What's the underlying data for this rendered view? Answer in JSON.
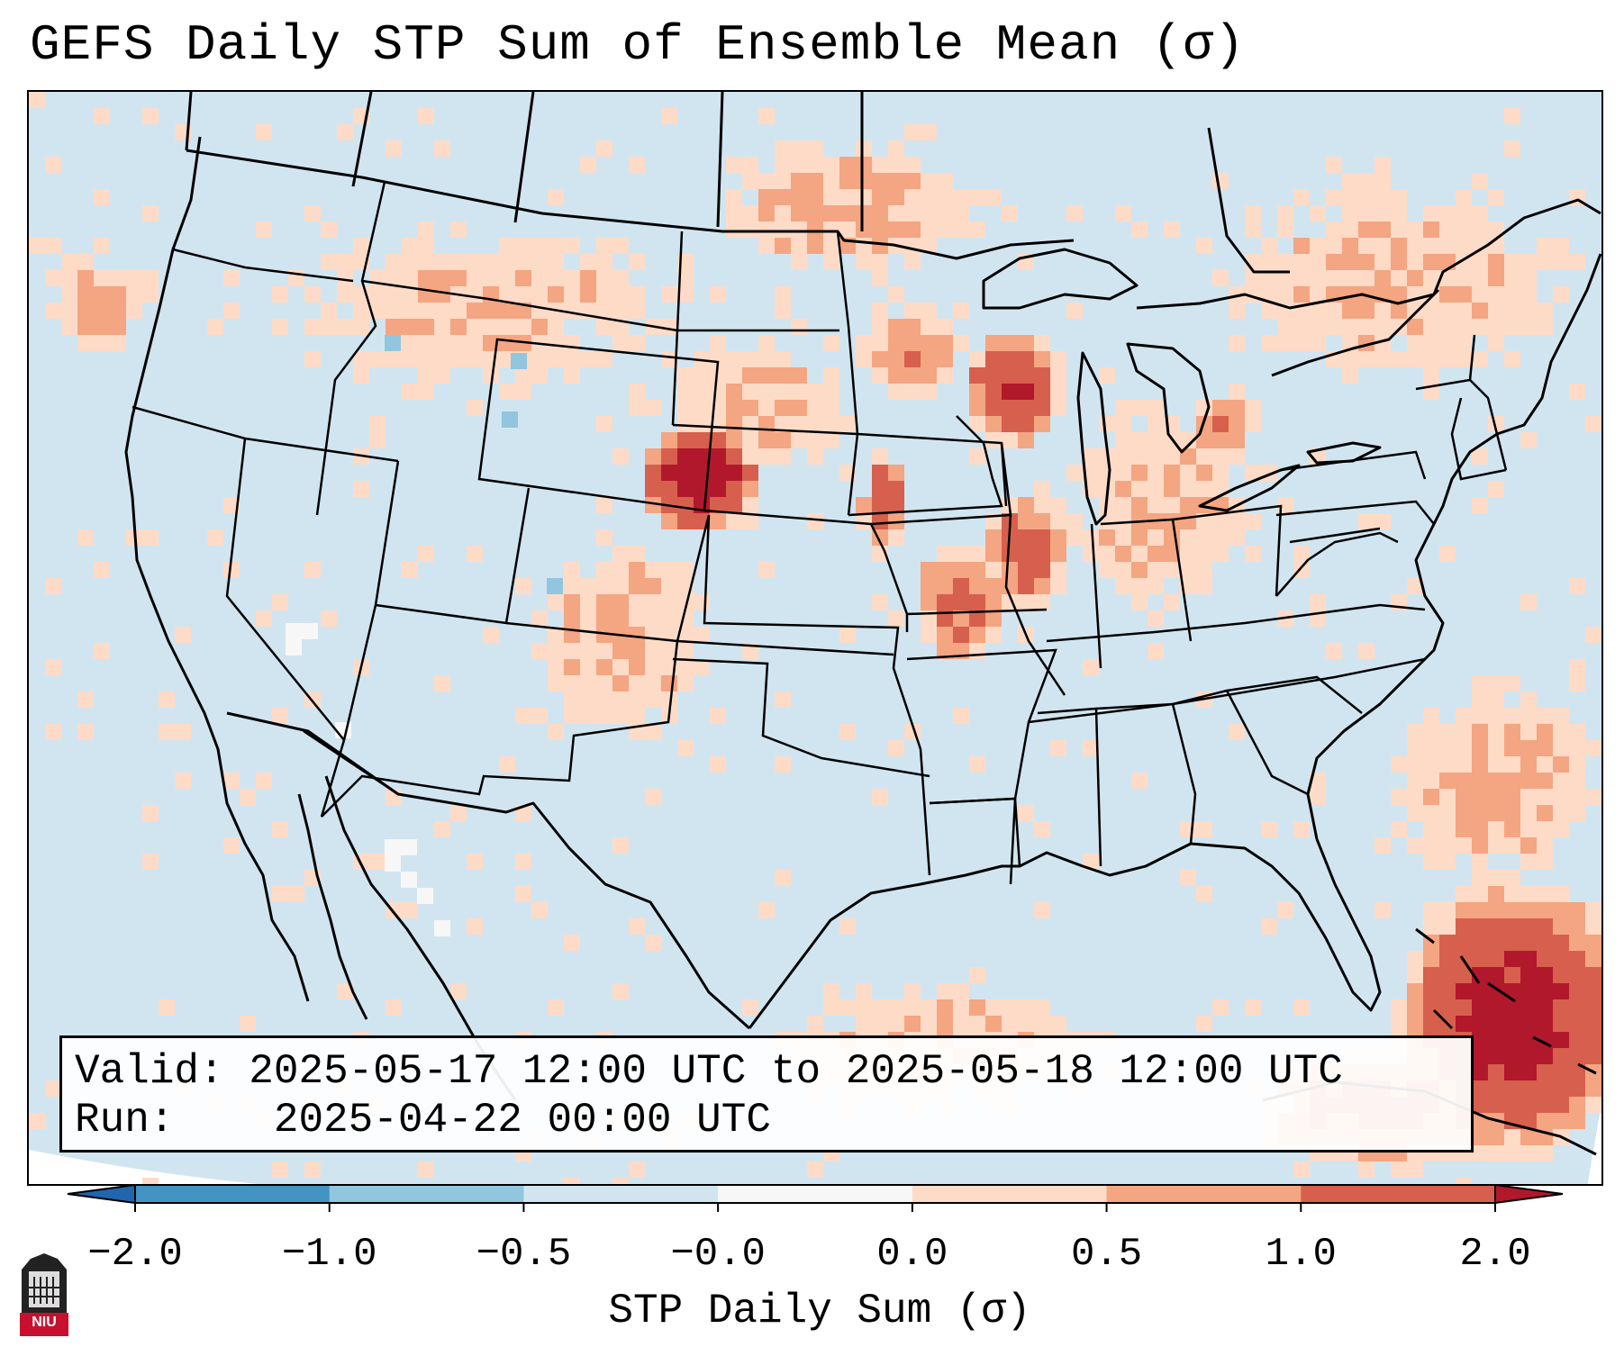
{
  "title": "GEFS Daily STP Sum of Ensemble Mean (σ)",
  "info_box": {
    "valid_label": "Valid:",
    "valid_value": "2025-05-17 12:00 UTC to 2025-05-18 12:00 UTC",
    "run_label": "Run:",
    "run_value": "2025-04-22 00:00 UTC"
  },
  "colorbar": {
    "label": "STP Daily Sum (σ)",
    "ticks": [
      "−2.0",
      "−1.0",
      "−0.5",
      "−0.0",
      "0.0",
      "0.5",
      "1.0",
      "2.0"
    ],
    "bin_colors": [
      "#4393c3",
      "#92c5de",
      "#d1e5f0",
      "#f7f7f7",
      "#fddbc7",
      "#f4a582",
      "#d6604d"
    ],
    "under_color": "#2166ac",
    "over_color": "#b2182b",
    "extend": "both"
  },
  "map": {
    "region": "Contiguous United States",
    "projection": "Lambert Conformal",
    "background_color": "#d1e5f0",
    "outline_features": [
      "coastlines",
      "state borders",
      "country borders",
      "Great Lakes"
    ],
    "data_features": [
      {
        "area": "NE Colorado / SW Nebraska",
        "level": ">2.0"
      },
      {
        "area": "Southern Wisconsin / Northern Illinois",
        "level": "1.0 to 2.0"
      },
      {
        "area": "Eastern Kansas / Western Missouri",
        "level": "0.5 to 1.0"
      },
      {
        "area": "Western Atlantic near Bahamas",
        "level": "1.0 to >2.0"
      }
    ]
  },
  "logo": {
    "text": "NIU",
    "color": "#c8102e"
  }
}
